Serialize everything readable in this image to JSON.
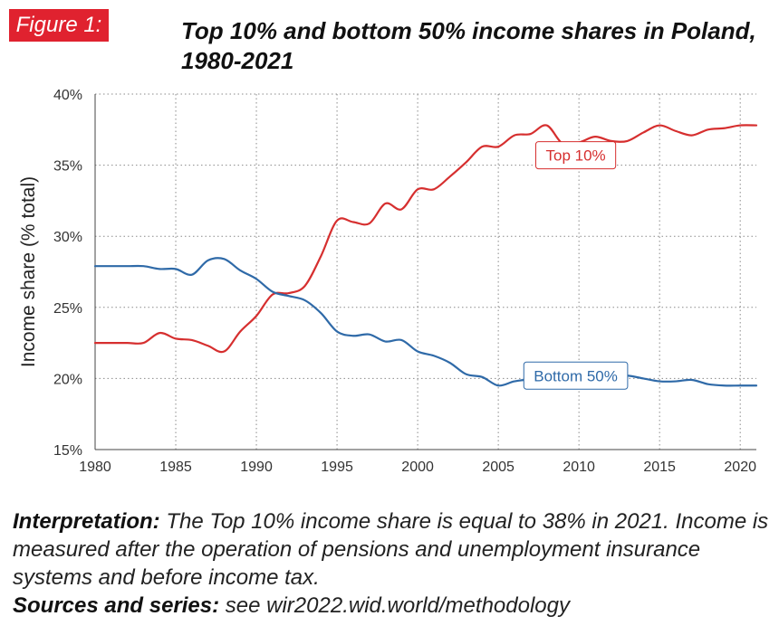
{
  "figure_label": "Figure 1:",
  "chart_data": {
    "type": "line",
    "title": "Top 10% and bottom 50% income shares in Poland, 1980-2021",
    "xlabel": "",
    "ylabel": "Income share (% total)",
    "xlim": [
      1980,
      2021
    ],
    "ylim": [
      15,
      40
    ],
    "x_ticks": [
      1980,
      1985,
      1990,
      1995,
      2000,
      2005,
      2010,
      2015,
      2020
    ],
    "y_ticks": [
      15,
      20,
      25,
      30,
      35,
      40
    ],
    "y_tick_labels": [
      "15%",
      "20%",
      "25%",
      "30%",
      "35%",
      "40%"
    ],
    "grid": true,
    "x": [
      1980,
      1981,
      1982,
      1983,
      1984,
      1985,
      1986,
      1987,
      1988,
      1989,
      1990,
      1991,
      1992,
      1993,
      1994,
      1995,
      1996,
      1997,
      1998,
      1999,
      2000,
      2001,
      2002,
      2003,
      2004,
      2005,
      2006,
      2007,
      2008,
      2009,
      2010,
      2011,
      2012,
      2013,
      2014,
      2015,
      2016,
      2017,
      2018,
      2019,
      2020,
      2021
    ],
    "series": [
      {
        "name": "Top 10%",
        "color": "#d62f2f",
        "label_bg": "#ffffff",
        "values": [
          22.5,
          22.5,
          22.5,
          22.5,
          23.2,
          22.8,
          22.7,
          22.3,
          21.9,
          23.3,
          24.4,
          25.9,
          26.0,
          26.5,
          28.6,
          31.1,
          31.0,
          30.9,
          32.3,
          31.9,
          33.3,
          33.3,
          34.2,
          35.2,
          36.3,
          36.3,
          37.1,
          37.2,
          37.8,
          36.5,
          36.6,
          37.0,
          36.7,
          36.7,
          37.3,
          37.8,
          37.4,
          37.1,
          37.5,
          37.6,
          37.8,
          37.8
        ]
      },
      {
        "name": "Bottom 50%",
        "color": "#2f6aa8",
        "label_bg": "#ffffff",
        "values": [
          27.9,
          27.9,
          27.9,
          27.9,
          27.7,
          27.7,
          27.3,
          28.3,
          28.4,
          27.6,
          27.0,
          26.1,
          25.8,
          25.5,
          24.6,
          23.3,
          23.0,
          23.1,
          22.6,
          22.7,
          21.9,
          21.6,
          21.1,
          20.3,
          20.1,
          19.5,
          19.8,
          19.9,
          19.6,
          19.9,
          19.9,
          19.8,
          20.2,
          20.2,
          20.0,
          19.8,
          19.8,
          19.9,
          19.6,
          19.5,
          19.5,
          19.5
        ]
      }
    ]
  },
  "footer": {
    "interpretation_label": "Interpretation:",
    "interpretation_text": " The Top 10% income share is equal to 38% in 2021. Income is measured after the operation of pensions and unemployment insurance systems and before income tax.",
    "sources_label": "Sources and series:",
    "sources_text": " see wir2022.wid.world/methodology"
  }
}
